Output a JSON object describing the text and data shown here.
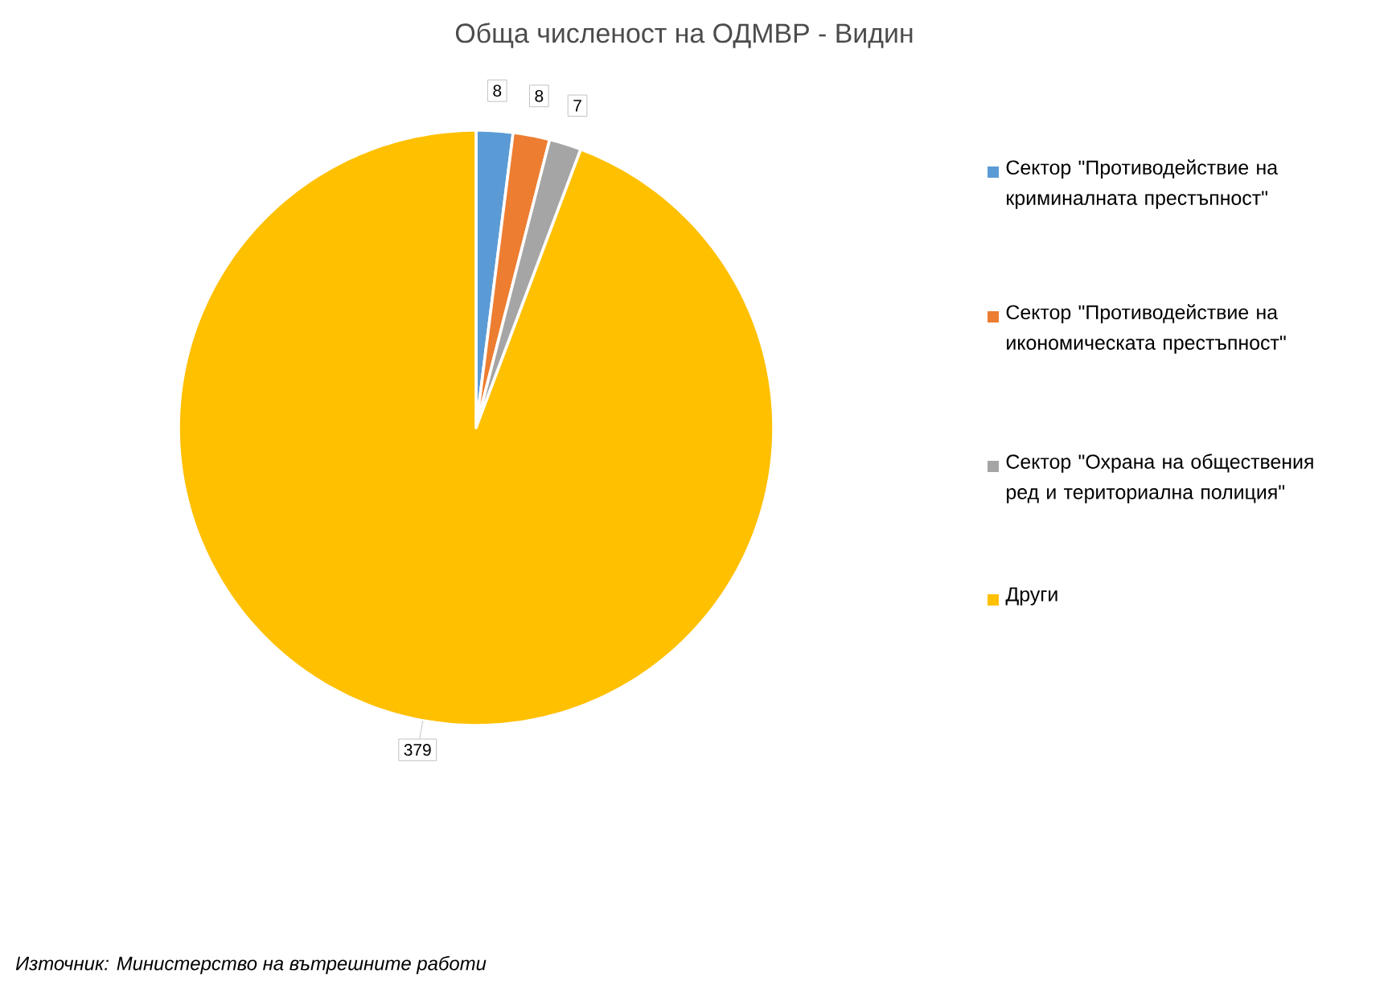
{
  "chart_data": {
    "type": "pie",
    "title": "Обща численост на ОДМВР - Видин",
    "categories": [
      "Сектор \"Противодействие на криминалната престъпност\"",
      "Сектор \"Противодействие на икономическата престъпност\"",
      "Сектор \"Охрана на обществения ред и териториална полиция\"",
      "Други"
    ],
    "values": [
      8,
      8,
      7,
      379
    ],
    "colors": [
      "#5b9bd5",
      "#ed7d31",
      "#a5a5a5",
      "#ffc000"
    ],
    "data_labels": true,
    "legend": "right",
    "annotations": [
      "Източник: Министерство на вътрешните работи"
    ]
  }
}
